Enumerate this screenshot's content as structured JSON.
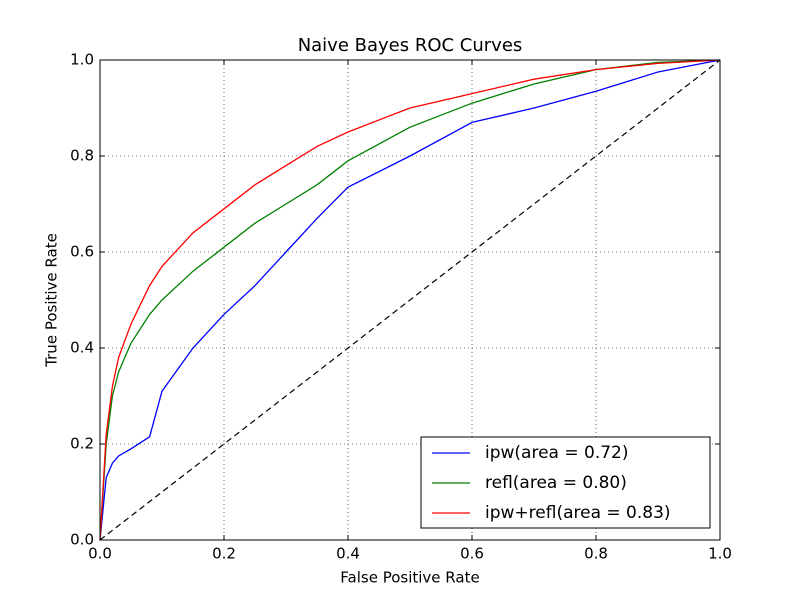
{
  "chart_data": {
    "type": "line",
    "title": "Naive Bayes ROC Curves",
    "x_label": "False Positive Rate",
    "y_label": "True Positive Rate",
    "x": [
      0,
      0.01,
      0.02,
      0.03,
      0.05,
      0.08,
      0.1,
      0.15,
      0.2,
      0.25,
      0.3,
      0.35,
      0.4,
      0.5,
      0.6,
      0.7,
      0.8,
      0.9,
      1.0
    ],
    "series": [
      {
        "name": "ipw(area = 0.72)",
        "color": "#0000ff",
        "values": [
          0,
          0.13,
          0.16,
          0.175,
          0.19,
          0.215,
          0.31,
          0.4,
          0.47,
          0.53,
          0.6,
          0.67,
          0.735,
          0.8,
          0.87,
          0.9,
          0.935,
          0.975,
          1.0
        ]
      },
      {
        "name": "refl(area = 0.80)",
        "color": "#008000",
        "values": [
          0,
          0.2,
          0.3,
          0.35,
          0.41,
          0.47,
          0.5,
          0.56,
          0.61,
          0.66,
          0.7,
          0.74,
          0.79,
          0.86,
          0.91,
          0.95,
          0.98,
          0.995,
          1.0
        ]
      },
      {
        "name": "ipw+refl(area = 0.83)",
        "color": "#ff0000",
        "values": [
          0,
          0.22,
          0.32,
          0.38,
          0.45,
          0.53,
          0.57,
          0.64,
          0.69,
          0.74,
          0.78,
          0.82,
          0.85,
          0.9,
          0.93,
          0.96,
          0.98,
          0.993,
          1.0
        ]
      }
    ],
    "reference_line": {
      "x": [
        0,
        1
      ],
      "y": [
        0,
        1
      ],
      "color": "#000000",
      "dashed": true
    },
    "xlim": [
      0,
      1
    ],
    "ylim": [
      0,
      1
    ],
    "xticks": [
      {
        "value": 0,
        "label": "0.0"
      },
      0.2,
      0.4,
      0.6,
      0.8,
      {
        "value": 1,
        "label": "1.0"
      }
    ],
    "yticks": [
      {
        "value": 0,
        "label": "0.0"
      },
      0.2,
      0.4,
      0.6,
      0.8,
      {
        "value": 1,
        "label": "1.0"
      }
    ],
    "grid": true,
    "legend": "lower right"
  }
}
